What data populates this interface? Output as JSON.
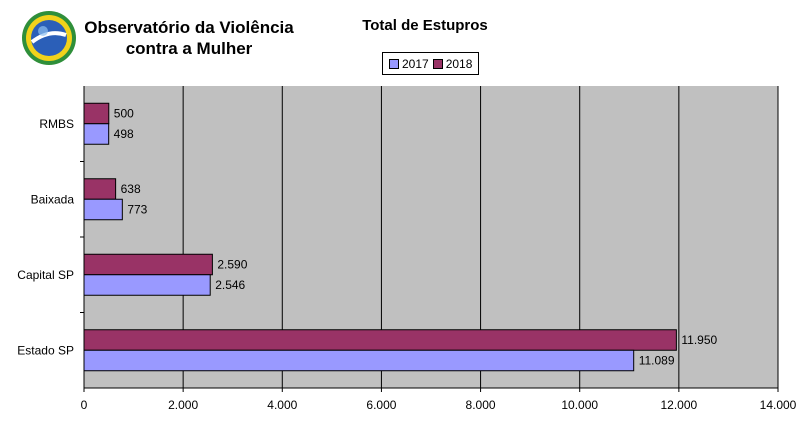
{
  "header": {
    "org_line1": "Observatório da Violência",
    "org_line2": "contra a Mulher"
  },
  "colors": {
    "series_2017": "#9999ff",
    "series_2018": "#993366",
    "plot_bg": "#c0c0c0"
  },
  "chart_data": {
    "type": "bar",
    "orientation": "horizontal",
    "title": "Total de Estupros",
    "categories": [
      "RMBS",
      "Baixada",
      "Capital SP",
      "Estado SP"
    ],
    "series": [
      {
        "name": "2017",
        "values": [
          498,
          773,
          2546,
          11089
        ],
        "labels": [
          "498",
          "773",
          "2.546",
          "11.089"
        ]
      },
      {
        "name": "2018",
        "values": [
          500,
          638,
          2590,
          11950
        ],
        "labels": [
          "500",
          "638",
          "2.590",
          "11.950"
        ]
      }
    ],
    "xlim": [
      0,
      14000
    ],
    "xticks": [
      0,
      2000,
      4000,
      6000,
      8000,
      10000,
      12000,
      14000
    ],
    "xtick_labels": [
      "0",
      "2.000",
      "4.000",
      "6.000",
      "8.000",
      "10.000",
      "12.000",
      "14.000"
    ],
    "grid": true,
    "legend_position": "top"
  }
}
